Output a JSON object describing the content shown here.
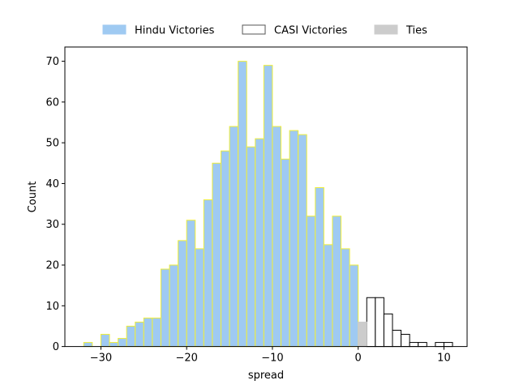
{
  "chart_data": {
    "type": "bar",
    "title": "",
    "xlabel": "spread",
    "ylabel": "Count",
    "xlim": [
      -34.2,
      12.7
    ],
    "ylim": [
      0,
      73.5
    ],
    "xticks": [
      -30,
      -20,
      -10,
      0,
      10
    ],
    "yticks": [
      0,
      10,
      20,
      30,
      40,
      50,
      60,
      70
    ],
    "bin_width": 1,
    "grid": false,
    "legend_position": "top-center",
    "series": [
      {
        "name": "Hindu Victories",
        "fill": "#9fcaf2",
        "edge": "#f0ee3a",
        "bins": [
          [
            -32,
            1
          ],
          [
            -30,
            3
          ],
          [
            -29,
            1
          ],
          [
            -28,
            2
          ],
          [
            -27,
            5
          ],
          [
            -26,
            6
          ],
          [
            -25,
            7
          ],
          [
            -24,
            7
          ],
          [
            -23,
            19
          ],
          [
            -22,
            20
          ],
          [
            -21,
            26
          ],
          [
            -20,
            31
          ],
          [
            -19,
            24
          ],
          [
            -18,
            36
          ],
          [
            -17,
            45
          ],
          [
            -16,
            48
          ],
          [
            -15,
            54
          ],
          [
            -14,
            70
          ],
          [
            -13,
            49
          ],
          [
            -12,
            51
          ],
          [
            -11,
            69
          ],
          [
            -10,
            54
          ],
          [
            -9,
            46
          ],
          [
            -8,
            53
          ],
          [
            -7,
            52
          ],
          [
            -6,
            32
          ],
          [
            -5,
            39
          ],
          [
            -4,
            25
          ],
          [
            -3,
            32
          ],
          [
            -2,
            24
          ],
          [
            -1,
            20
          ]
        ]
      },
      {
        "name": "CASI Victories",
        "fill": "#ffffff",
        "edge": "#000000",
        "bins": [
          [
            1,
            12
          ],
          [
            2,
            12
          ],
          [
            3,
            8
          ],
          [
            4,
            4
          ],
          [
            5,
            3
          ],
          [
            6,
            1
          ],
          [
            7,
            1
          ],
          [
            9,
            1
          ],
          [
            10,
            1
          ]
        ]
      },
      {
        "name": "Ties",
        "fill": "#cccccc",
        "edge": "#cccccc",
        "bins": [
          [
            0,
            6
          ]
        ]
      }
    ]
  }
}
